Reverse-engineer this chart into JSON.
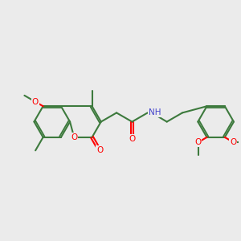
{
  "background_color": "#ebebeb",
  "bond_color": "#3d7a3d",
  "bond_width": 1.5,
  "atom_colors": {
    "O": "#ff0000",
    "N": "#4444cc",
    "C": "#3d7a3d"
  },
  "figsize": [
    3.0,
    3.0
  ],
  "dpi": 100
}
